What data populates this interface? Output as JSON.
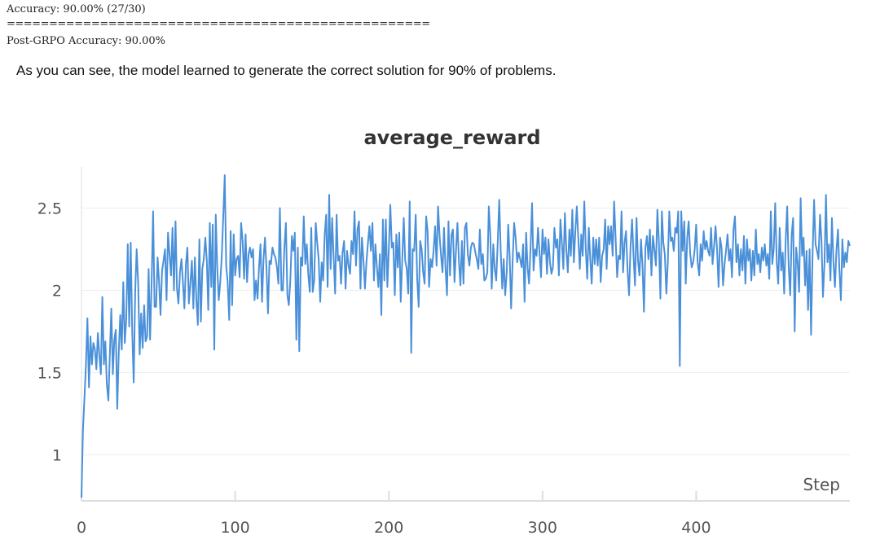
{
  "console": {
    "accuracy_line": "Accuracy: 90.00% (27/30)",
    "separator": "==================================================",
    "post_line": "Post-GRPO Accuracy: 90.00%"
  },
  "prose": {
    "text": "As you can see, the model learned to generate the correct solution for 90% of problems."
  },
  "colors": {
    "series": "#4a90d9",
    "grid": "#eeeeee",
    "axis": "#dddddd"
  },
  "chart_data": {
    "type": "line",
    "title": "average_reward",
    "xlabel": "Step",
    "ylabel": "",
    "xlim": [
      0,
      500
    ],
    "ylim": [
      0.72,
      2.75
    ],
    "xticks": [
      0,
      100,
      200,
      300,
      400
    ],
    "yticks": [
      1,
      1.5,
      2,
      2.5
    ],
    "ytick_labels": [
      "1",
      "1.5",
      "2",
      "2.5"
    ],
    "grid": true,
    "legend": "none",
    "series": [
      {
        "values": [
          0.74,
          1.15,
          1.35,
          1.55,
          1.83,
          1.41,
          1.72,
          1.55,
          1.68,
          1.64,
          1.52,
          1.74,
          1.6,
          1.49,
          1.96,
          1.55,
          1.69,
          1.43,
          1.33,
          1.61,
          1.89,
          1.49,
          1.7,
          1.76,
          1.28,
          1.63,
          1.85,
          1.64,
          2.05,
          1.68,
          1.82,
          2.28,
          1.78,
          2.29,
          1.74,
          1.44,
          1.99,
          2.25,
          2.04,
          1.61,
          1.86,
          1.65,
          1.91,
          1.69,
          1.72,
          2.13,
          1.7,
          2.05,
          2.48,
          1.9,
          1.9,
          2.2,
          2.05,
          1.85,
          2.12,
          2.18,
          2.25,
          1.94,
          2.35,
          2.22,
          2.09,
          2.38,
          2.0,
          2.42,
          2.01,
          1.92,
          2.11,
          2.19,
          2.05,
          1.89,
          2.16,
          2.26,
          1.92,
          2.05,
          2.18,
          1.89,
          2.2,
          1.94,
          1.79,
          2.31,
          1.81,
          2.13,
          2.19,
          2.32,
          2.18,
          1.88,
          2.41,
          2.02,
          2.4,
          1.64,
          2.46,
          2.14,
          1.94,
          2.05,
          2.2,
          2.45,
          2.7,
          2.15,
          2.05,
          1.82,
          2.36,
          1.91,
          2.34,
          2.09,
          2.19,
          2.21,
          2.08,
          2.41,
          2.3,
          2.07,
          2.34,
          2.05,
          2.22,
          2.26,
          2.2,
          2.25,
          1.94,
          2.06,
          1.95,
          2.14,
          2.28,
          1.93,
          2.19,
          2.32,
          2.13,
          1.86,
          2.18,
          2.16,
          2.26,
          2.22,
          2.2,
          2.14,
          2.04,
          2.5,
          2.0,
          2.0,
          2.26,
          2.41,
          1.97,
          1.91,
          2.06,
          2.33,
          2.24,
          2.35,
          1.7,
          2.26,
          1.63,
          2.2,
          2.15,
          2.45,
          2.16,
          2.28,
          2.1,
          1.99,
          2.38,
          1.99,
          2.06,
          2.41,
          2.29,
          2.19,
          1.93,
          2.17,
          2.06,
          2.34,
          2.46,
          2.02,
          2.58,
          2.13,
          2.44,
          2.2,
          1.98,
          2.46,
          2.18,
          2.21,
          2.04,
          2.23,
          2.3,
          2.01,
          2.24,
          2.15,
          2.1,
          2.3,
          2.22,
          2.48,
          2.15,
          2.37,
          2.42,
          2.01,
          2.32,
          2.18,
          2.01,
          2.17,
          2.29,
          2.39,
          2.24,
          2.41,
          2.06,
          2.28,
          2.14,
          2.02,
          2.22,
          1.85,
          2.43,
          2.06,
          2.43,
          2.02,
          2.25,
          2.52,
          2.26,
          2.29,
          1.97,
          2.34,
          2.14,
          2.35,
          1.93,
          2.19,
          2.44,
          2.18,
          2.13,
          1.98,
          2.54,
          1.62,
          2.25,
          2.24,
          2.46,
          2.07,
          1.9,
          2.3,
          2.25,
          2.11,
          2.04,
          2.45,
          2.36,
          2.02,
          2.19,
          2.14,
          2.24,
          2.39,
          2.15,
          2.51,
          2.33,
          2.21,
          2.11,
          2.38,
          2.13,
          1.97,
          2.42,
          2.09,
          2.34,
          2.37,
          2.05,
          2.24,
          2.41,
          2.17,
          2.03,
          2.3,
          2.04,
          2.38,
          2.41,
          2.22,
          2.15,
          2.26,
          2.29,
          2.28,
          2.23,
          2.19,
          2.13,
          2.37,
          2.16,
          2.22,
          2.06,
          2.07,
          2.11,
          2.51,
          2.34,
          2.01,
          2.28,
          2.13,
          2.06,
          2.3,
          2.55,
          2.24,
          2.01,
          2.19,
          1.97,
          2.11,
          2.4,
          2.21,
          1.89,
          2.19,
          2.41,
          2.32,
          2.17,
          2.23,
          2.19,
          2.14,
          2.28,
          1.93,
          2.35,
          2.14,
          2.04,
          2.27,
          2.53,
          2.12,
          2.25,
          2.21,
          2.38,
          2.23,
          2.08,
          2.37,
          2.22,
          2.32,
          2.1,
          2.31,
          2.17,
          2.1,
          2.14,
          2.38,
          2.26,
          2.31,
          2.09,
          2.43,
          2.29,
          2.13,
          2.47,
          2.24,
          2.11,
          2.37,
          2.21,
          2.49,
          2.17,
          2.36,
          2.51,
          2.32,
          2.13,
          2.34,
          2.21,
          2.54,
          2.25,
          2.07,
          2.38,
          2.19,
          2.04,
          2.32,
          2.16,
          2.31,
          2.15,
          2.32,
          2.05,
          2.21,
          2.25,
          2.43,
          2.13,
          2.39,
          2.28,
          2.39,
          2.21,
          2.54,
          2.32,
          2.08,
          2.21,
          2.19,
          2.48,
          2.11,
          2.29,
          2.36,
          2.12,
          1.97,
          2.26,
          2.43,
          2.21,
          2.03,
          2.44,
          2.18,
          2.09,
          2.31,
          2.15,
          1.87,
          2.26,
          2.33,
          2.19,
          2.37,
          2.09,
          2.33,
          2.25,
          2.15,
          2.49,
          2.3,
          1.95,
          2.48,
          2.29,
          2.22,
          1.98,
          2.17,
          2.48,
          2.3,
          2.32,
          2.24,
          2.38,
          2.35,
          2.48,
          1.54,
          2.48,
          2.24,
          2.42,
          2.04,
          2.32,
          2.42,
          2.22,
          2.14,
          2.17,
          2.25,
          2.4,
          2.17,
          2.09,
          2.28,
          2.18,
          2.36,
          2.25,
          2.3,
          2.24,
          2.21,
          2.38,
          2.16,
          2.27,
          2.39,
          2.25,
          2.02,
          2.32,
          2.26,
          2.03,
          2.16,
          2.24,
          2.34,
          2.18,
          2.25,
          2.08,
          2.37,
          2.45,
          2.17,
          2.28,
          2.09,
          2.25,
          2.12,
          2.33,
          2.04,
          2.31,
          2.18,
          2.25,
          2.06,
          2.24,
          2.09,
          2.37,
          2.16,
          2.22,
          2.11,
          2.26,
          2.18,
          2.28,
          2.15,
          2.22,
          2.07,
          2.48,
          2.16,
          2.25,
          2.53,
          2.17,
          2.04,
          2.38,
          2.12,
          2.23,
          1.98,
          2.31,
          2.51,
          2.15,
          1.97,
          2.34,
          2.44,
          1.75,
          2.26,
          2.17,
          1.99,
          2.56,
          2.21,
          2.32,
          2.03,
          2.24,
          1.88,
          2.25,
          1.73,
          2.21,
          2.55,
          2.28,
          2.24,
          2.19,
          2.46,
          2.3,
          1.96,
          2.17,
          2.58,
          2.17,
          2.28,
          2.06,
          2.44,
          2.17,
          2.02,
          2.24,
          2.37,
          2.12,
          1.94,
          2.31,
          2.14,
          2.23,
          2.17,
          2.3,
          2.27
        ]
      }
    ]
  }
}
